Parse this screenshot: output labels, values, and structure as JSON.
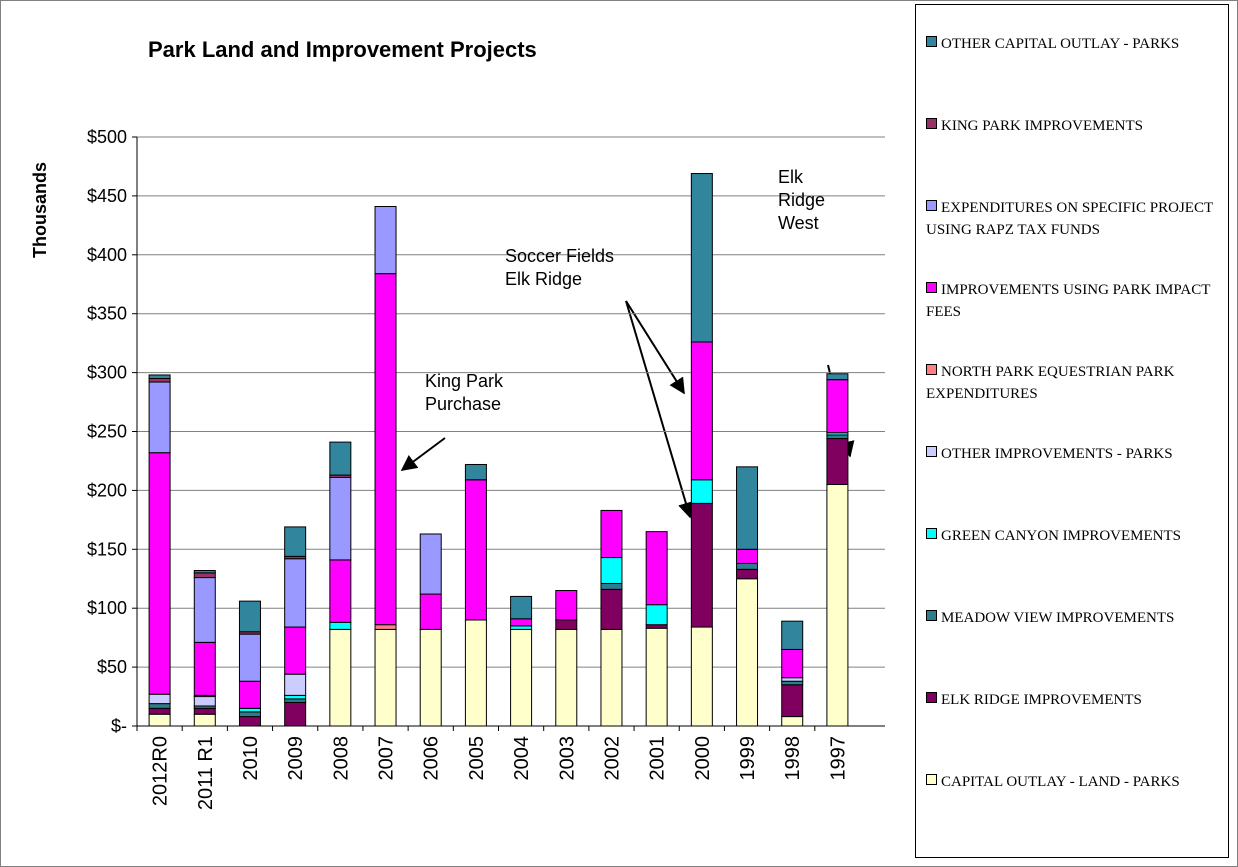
{
  "chart_data": {
    "type": "bar",
    "stacked": true,
    "title": "Park Land and Improvement Projects",
    "y_label": "Thousands",
    "categories": [
      "2012R0",
      "2011 R1",
      "2010",
      "2009",
      "2008",
      "2007",
      "2006",
      "2005",
      "2004",
      "2003",
      "2002",
      "2001",
      "2000",
      "1999",
      "1998",
      "1997"
    ],
    "series": [
      {
        "name": "CAPITAL OUTLAY - LAND  - PARKS",
        "color": "#ffffcc",
        "values": [
          10,
          10,
          0,
          0,
          82,
          82,
          82,
          90,
          82,
          82,
          82,
          83,
          84,
          125,
          8,
          205
        ]
      },
      {
        "name": "ELK RIDGE IMPROVEMENTS",
        "color": "#800060",
        "values": [
          5,
          5,
          8,
          20,
          0,
          0,
          0,
          0,
          0,
          8,
          34,
          3,
          105,
          8,
          27,
          39
        ]
      },
      {
        "name": "MEADOW VIEW IMPROVEMENTS",
        "color": "#2e7d8c",
        "values": [
          4,
          2,
          4,
          3,
          0,
          0,
          0,
          0,
          0,
          0,
          5,
          0,
          0,
          5,
          3,
          3
        ]
      },
      {
        "name": "GREEN CANYON IMPROVEMENTS",
        "color": "#00ffff",
        "values": [
          0,
          0,
          3,
          3,
          6,
          0,
          0,
          0,
          3,
          0,
          22,
          17,
          20,
          0,
          0,
          2
        ]
      },
      {
        "name": "OTHER IMPROVEMENTS  - PARKS",
        "color": "#ccccff",
        "values": [
          8,
          8,
          0,
          18,
          0,
          0,
          0,
          0,
          0,
          0,
          0,
          0,
          0,
          0,
          3,
          0
        ]
      },
      {
        "name": "NORTH PARK EQUESTRIAN PARK EXPENDITURES",
        "color": "#ff8080",
        "values": [
          0,
          1,
          0,
          0,
          0,
          4,
          0,
          0,
          0,
          0,
          0,
          0,
          0,
          0,
          0,
          0
        ]
      },
      {
        "name": "IMPROVEMENTS USING PARK IMPACT FEES",
        "color": "#ff00ff",
        "values": [
          205,
          45,
          23,
          40,
          53,
          298,
          30,
          119,
          6,
          25,
          40,
          62,
          117,
          12,
          24,
          45
        ]
      },
      {
        "name": "EXPENDITURES ON SPECIFIC PROJECT USING RAPZ TAX FUNDS",
        "color": "#9999ff",
        "values": [
          60,
          55,
          40,
          58,
          70,
          57,
          51,
          0,
          0,
          0,
          0,
          0,
          0,
          0,
          0,
          0
        ]
      },
      {
        "name": "KING PARK IMPROVEMENTS",
        "color": "#993366",
        "values": [
          3,
          4,
          2,
          2,
          2,
          0,
          0,
          0,
          0,
          0,
          0,
          0,
          0,
          0,
          0,
          0
        ]
      },
      {
        "name": "OTHER CAPITAL OUTLAY - PARKS",
        "color": "#31859c",
        "values": [
          3,
          2,
          26,
          25,
          28,
          0,
          0,
          13,
          19,
          0,
          0,
          0,
          143,
          70,
          24,
          5
        ]
      }
    ],
    "ylim": [
      0,
      500
    ],
    "yticks": [
      {
        "value": 0,
        "label": "$-"
      },
      {
        "value": 50,
        "label": "$50"
      },
      {
        "value": 100,
        "label": "$100"
      },
      {
        "value": 150,
        "label": "$150"
      },
      {
        "value": 200,
        "label": "$200"
      },
      {
        "value": 250,
        "label": "$250"
      },
      {
        "value": 300,
        "label": "$300"
      },
      {
        "value": 350,
        "label": "$350"
      },
      {
        "value": 400,
        "label": "$400"
      },
      {
        "value": 450,
        "label": "$450"
      },
      {
        "value": 500,
        "label": "$500"
      }
    ],
    "grid": true,
    "legend": "right",
    "annotations": [
      {
        "lines": [
          "King Park",
          "Purchase"
        ]
      },
      {
        "lines": [
          "Soccer Fields",
          "Elk Ridge"
        ]
      },
      {
        "lines": [
          "Elk",
          "Ridge",
          "West"
        ]
      }
    ]
  }
}
